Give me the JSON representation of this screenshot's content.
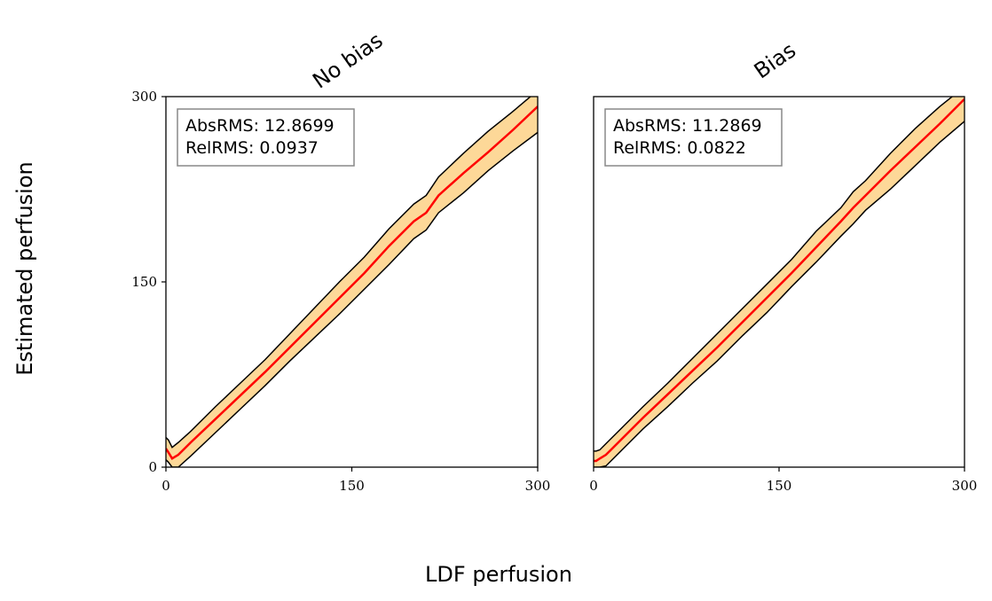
{
  "figure": {
    "ylabel": "Estimated perfusion",
    "xlabel": "LDF perfusion"
  },
  "colors": {
    "mean_line": "#ff0000",
    "band_fill": "#fdd898",
    "band_edge": "#000000",
    "axes": "#000000",
    "stats_box_edge": "#888888"
  },
  "chart_data": [
    {
      "type": "line",
      "title": "No bias",
      "xlim": [
        0,
        300
      ],
      "ylim": [
        0,
        300
      ],
      "xticks": [
        "0",
        "150",
        "300"
      ],
      "yticks": [
        "0",
        "150",
        "300"
      ],
      "grid": false,
      "stats": [
        "AbsRMS: 12.8699",
        "RelRMS: 0.0937"
      ],
      "x": [
        0,
        2,
        5,
        10,
        20,
        40,
        60,
        80,
        100,
        120,
        140,
        160,
        180,
        200,
        210,
        220,
        240,
        260,
        280,
        300
      ],
      "mean": [
        15,
        12,
        7,
        10,
        20,
        39,
        58,
        77,
        97,
        117,
        137,
        157,
        179,
        199,
        206,
        220,
        238,
        255,
        273,
        292
      ],
      "upper": [
        24,
        22,
        16,
        20,
        29,
        49,
        68,
        87,
        108,
        129,
        150,
        170,
        193,
        213,
        220,
        235,
        254,
        272,
        288,
        305
      ],
      "lower": [
        6,
        4,
        0,
        0,
        9,
        28,
        47,
        66,
        86,
        105,
        124,
        144,
        164,
        185,
        192,
        206,
        222,
        240,
        256,
        271
      ]
    },
    {
      "type": "line",
      "title": "Bias",
      "xlim": [
        0,
        300
      ],
      "ylim": [
        0,
        300
      ],
      "xticks": [
        "0",
        "150",
        "300"
      ],
      "yticks": [
        "0",
        "150",
        "300"
      ],
      "grid": false,
      "stats": [
        "AbsRMS: 11.2869",
        "RelRMS: 0.0822"
      ],
      "x": [
        0,
        2,
        5,
        10,
        20,
        40,
        60,
        80,
        100,
        120,
        140,
        160,
        180,
        200,
        210,
        220,
        240,
        260,
        280,
        300
      ],
      "mean": [
        5,
        5,
        7,
        10,
        20,
        40,
        59,
        78,
        97,
        117,
        137,
        157,
        178,
        199,
        210,
        220,
        240,
        259,
        278,
        298
      ],
      "upper": [
        13,
        13,
        14,
        19,
        29,
        49,
        68,
        88,
        108,
        128,
        148,
        168,
        191,
        210,
        223,
        232,
        254,
        274,
        292,
        308
      ],
      "lower": [
        0,
        0,
        0,
        1,
        11,
        31,
        49,
        68,
        86,
        106,
        125,
        146,
        166,
        187,
        197,
        208,
        225,
        244,
        263,
        280
      ]
    }
  ]
}
